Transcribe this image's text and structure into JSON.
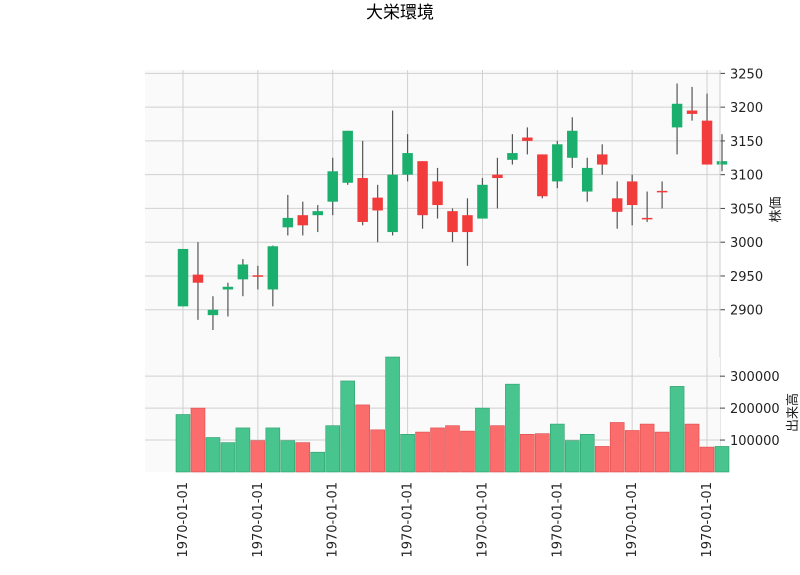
{
  "chart_data": {
    "type": "candlestick",
    "title": "大栄環境",
    "price_panel": {
      "ylabel": "株価",
      "ylim": [
        2830,
        3255
      ],
      "yticks": [
        2900,
        2950,
        3000,
        3050,
        3100,
        3150,
        3200,
        3250
      ],
      "grid": true,
      "y_axis_side": "right"
    },
    "volume_panel": {
      "ylabel": "出来高",
      "ylim": [
        0,
        360000
      ],
      "yticks": [
        100000,
        200000,
        300000
      ],
      "grid": true,
      "y_axis_side": "right"
    },
    "x_tick_labels": [
      "1970-01-01",
      "1970-01-01",
      "1970-01-01",
      "1970-01-01",
      "1970-01-01",
      "1970-01-01",
      "1970-01-01",
      "1970-01-01"
    ],
    "x_tick_every": 5,
    "up_color": "#1aaf6c",
    "down_color": "#f23b3b",
    "up_volume_color": "#48c48e",
    "down_volume_color": "#fb6c6c",
    "candles": [
      {
        "open": 2905,
        "high": 2990,
        "low": 2905,
        "close": 2990,
        "volume": 180000
      },
      {
        "open": 2952,
        "high": 3000,
        "low": 2885,
        "close": 2940,
        "volume": 200000
      },
      {
        "open": 2892,
        "high": 2920,
        "low": 2870,
        "close": 2900,
        "volume": 108000
      },
      {
        "open": 2930,
        "high": 2940,
        "low": 2890,
        "close": 2934,
        "volume": 92000
      },
      {
        "open": 2945,
        "high": 2975,
        "low": 2920,
        "close": 2967,
        "volume": 138000
      },
      {
        "open": 2951,
        "high": 2965,
        "low": 2930,
        "close": 2949,
        "volume": 98000
      },
      {
        "open": 2930,
        "high": 2995,
        "low": 2905,
        "close": 2994,
        "volume": 138000
      },
      {
        "open": 3022,
        "high": 3070,
        "low": 3010,
        "close": 3036,
        "volume": 98000
      },
      {
        "open": 3040,
        "high": 3060,
        "low": 3010,
        "close": 3025,
        "volume": 92000
      },
      {
        "open": 3040,
        "high": 3055,
        "low": 3015,
        "close": 3046,
        "volume": 62000
      },
      {
        "open": 3060,
        "high": 3125,
        "low": 3040,
        "close": 3105,
        "volume": 145000
      },
      {
        "open": 3088,
        "high": 3165,
        "low": 3085,
        "close": 3165,
        "volume": 285000
      },
      {
        "open": 3095,
        "high": 3150,
        "low": 3025,
        "close": 3030,
        "volume": 210000
      },
      {
        "open": 3066,
        "high": 3085,
        "low": 3000,
        "close": 3047,
        "volume": 132000
      },
      {
        "open": 3015,
        "high": 3195,
        "low": 3010,
        "close": 3100,
        "volume": 360000
      },
      {
        "open": 3100,
        "high": 3160,
        "low": 3090,
        "close": 3132,
        "volume": 118000
      },
      {
        "open": 3120,
        "high": 3120,
        "low": 3020,
        "close": 3040,
        "volume": 125000
      },
      {
        "open": 3090,
        "high": 3110,
        "low": 3035,
        "close": 3055,
        "volume": 138000
      },
      {
        "open": 3046,
        "high": 3050,
        "low": 3000,
        "close": 3015,
        "volume": 145000
      },
      {
        "open": 3040,
        "high": 3065,
        "low": 2965,
        "close": 3015,
        "volume": 128000
      },
      {
        "open": 3035,
        "high": 3095,
        "low": 3035,
        "close": 3085,
        "volume": 200000
      },
      {
        "open": 3100,
        "high": 3125,
        "low": 3050,
        "close": 3095,
        "volume": 145000
      },
      {
        "open": 3122,
        "high": 3160,
        "low": 3115,
        "close": 3132,
        "volume": 275000
      },
      {
        "open": 3155,
        "high": 3170,
        "low": 3130,
        "close": 3150,
        "volume": 118000
      },
      {
        "open": 3130,
        "high": 3130,
        "low": 3065,
        "close": 3068,
        "volume": 120000
      },
      {
        "open": 3090,
        "high": 3150,
        "low": 3080,
        "close": 3145,
        "volume": 150000
      },
      {
        "open": 3125,
        "high": 3185,
        "low": 3110,
        "close": 3165,
        "volume": 98000
      },
      {
        "open": 3075,
        "high": 3125,
        "low": 3060,
        "close": 3110,
        "volume": 118000
      },
      {
        "open": 3130,
        "high": 3145,
        "low": 3100,
        "close": 3115,
        "volume": 80000
      },
      {
        "open": 3065,
        "high": 3090,
        "low": 3020,
        "close": 3045,
        "volume": 155000
      },
      {
        "open": 3090,
        "high": 3100,
        "low": 3025,
        "close": 3055,
        "volume": 130000
      },
      {
        "open": 3036,
        "high": 3075,
        "low": 3030,
        "close": 3035,
        "volume": 150000
      },
      {
        "open": 3076,
        "high": 3090,
        "low": 3050,
        "close": 3075,
        "volume": 125000
      },
      {
        "open": 3170,
        "high": 3235,
        "low": 3130,
        "close": 3205,
        "volume": 268000
      },
      {
        "open": 3195,
        "high": 3230,
        "low": 3180,
        "close": 3190,
        "volume": 150000
      },
      {
        "open": 3180,
        "high": 3220,
        "low": 3115,
        "close": 3115,
        "volume": 78000
      },
      {
        "open": 3115,
        "high": 3160,
        "low": 3105,
        "close": 3120,
        "volume": 80000
      }
    ]
  }
}
